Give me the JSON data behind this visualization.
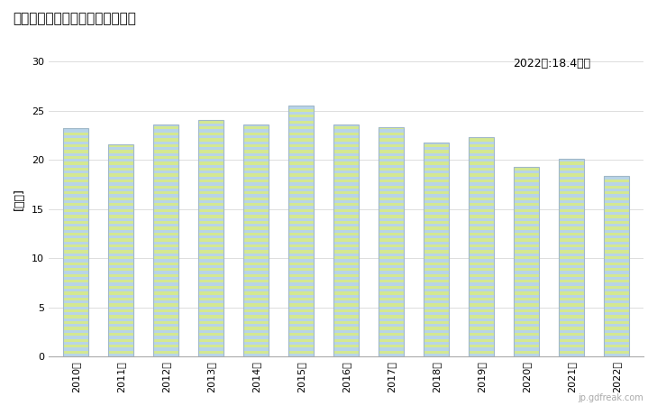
{
  "title": "男性常用労働者の所定外労働時間",
  "ylabel": "[時間]",
  "annotation": "2022年:18.4時間",
  "years": [
    "2010年",
    "2011年",
    "2012年",
    "2013年",
    "2014年",
    "2015年",
    "2016年",
    "2017年",
    "2018年",
    "2019年",
    "2020年",
    "2021年",
    "2022年"
  ],
  "values": [
    23.2,
    21.6,
    23.6,
    24.1,
    23.6,
    25.5,
    23.6,
    23.3,
    21.8,
    22.3,
    19.3,
    20.1,
    18.4
  ],
  "ylim": [
    0,
    32
  ],
  "yticks": [
    0,
    5,
    10,
    15,
    20,
    25,
    30
  ],
  "stripe_color1": "#b8d4e8",
  "stripe_color2": "#d4e890",
  "bar_edge_color": "#a0b8c8",
  "background_color": "#ffffff",
  "grid_color": "#d0d0d0",
  "title_fontsize": 11,
  "label_fontsize": 9,
  "tick_fontsize": 8,
  "annotation_fontsize": 9,
  "watermark": "jp.gdfreak.com",
  "bar_width": 0.55
}
